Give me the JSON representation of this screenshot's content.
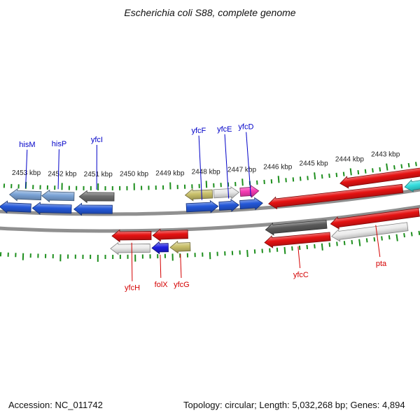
{
  "title": "Escherichia coli S88, complete genome",
  "status_bar": {
    "accession": "Accession: NC_011742",
    "summary": "Topology: circular; Length: 5,032,268 bp; Genes: 4,894"
  },
  "chart_data": {
    "type": "genome-map",
    "unit": "kbp",
    "view": {
      "left_kbp": 2453.7,
      "right_kbp": 2442.1,
      "orientation": "coordinates decrease left to right",
      "major_tick_kbp": 1,
      "minor_tick_kbp": 0.2
    },
    "colors": {
      "backbone": "#909090",
      "tick": "#1e8f1e",
      "label_blue": "#0000c8",
      "label_red": "#d40000"
    },
    "ruler_ticks": [
      {
        "value": 2453,
        "label": "2453 kbp"
      },
      {
        "value": 2452,
        "label": "2452 kbp"
      },
      {
        "value": 2451,
        "label": "2451 kbp"
      },
      {
        "value": 2450,
        "label": "2450 kbp"
      },
      {
        "value": 2449,
        "label": "2449 kbp"
      },
      {
        "value": 2448,
        "label": "2448 kbp"
      },
      {
        "value": 2447,
        "label": "2447 kbp"
      },
      {
        "value": 2446,
        "label": "2446 kbp"
      },
      {
        "value": 2445,
        "label": "2445 kbp"
      },
      {
        "value": 2444,
        "label": "2444 kbp"
      },
      {
        "value": 2443,
        "label": "2443 kbp"
      }
    ],
    "genes": [
      {
        "name": "hisM",
        "strand": "forward",
        "row": "outer",
        "start_kbp": 2453.44,
        "end_kbp": 2452.57,
        "color": "#7aa3d6",
        "head": "left",
        "label_color": "#0000c8",
        "label_k": -106
      },
      {
        "name": "hisP",
        "strand": "forward",
        "row": "outer",
        "start_kbp": 2452.55,
        "end_kbp": 2451.66,
        "color": "#7aa3d6",
        "head": "left",
        "label_color": "#0000c8",
        "label_k": -108
      },
      {
        "name": "yfcI",
        "strand": "forward",
        "row": "outer",
        "start_kbp": 2451.52,
        "end_kbp": 2450.56,
        "color": "#6e6e6e",
        "head": "left",
        "label_color": "#0000c8",
        "label_k": -115
      },
      {
        "strand": "forward",
        "row": "outer",
        "start_kbp": 2448.6,
        "end_kbp": 2447.85,
        "color": "#c9c06a",
        "head": "left"
      },
      {
        "strand": "forward",
        "row": "outer",
        "start_kbp": 2447.81,
        "end_kbp": 2447.12,
        "color": "#e8e8e8",
        "head": "right"
      },
      {
        "strand": "forward",
        "row": "outer",
        "start_kbp": 2447.08,
        "end_kbp": 2446.57,
        "color": "#f73bb4",
        "head": "right"
      },
      {
        "strand": "forward",
        "row": "outer",
        "start_kbp": 2444.33,
        "end_kbp": 2441.95,
        "color": "#e51212",
        "head": "left"
      },
      {
        "strand": "forward",
        "row": "inner",
        "start_kbp": 2453.7,
        "end_kbp": 2452.84,
        "color": "#2458d8",
        "head": "left"
      },
      {
        "strand": "forward",
        "row": "inner",
        "start_kbp": 2452.8,
        "end_kbp": 2451.73,
        "color": "#2458d8",
        "head": "left"
      },
      {
        "strand": "forward",
        "row": "inner",
        "start_kbp": 2451.66,
        "end_kbp": 2450.61,
        "color": "#2458d8",
        "head": "left"
      },
      {
        "name": "yfcF",
        "strand": "forward",
        "row": "inner",
        "start_kbp": 2448.58,
        "end_kbp": 2447.71,
        "color": "#2458d8",
        "head": "right",
        "label_color": "#0000c8",
        "label_k": -125
      },
      {
        "name": "yfcE",
        "strand": "forward",
        "row": "inner",
        "start_kbp": 2447.68,
        "end_kbp": 2447.14,
        "color": "#2458d8",
        "head": "right",
        "label_color": "#0000c8",
        "label_k": -125
      },
      {
        "name": "yfcD",
        "strand": "forward",
        "row": "inner",
        "start_kbp": 2447.11,
        "end_kbp": 2446.49,
        "color": "#2458d8",
        "head": "right",
        "label_color": "#0000c8",
        "label_k": -126
      },
      {
        "strand": "forward",
        "row": "inner",
        "start_kbp": 2446.33,
        "end_kbp": 2442.66,
        "color": "#e51212",
        "head": "left"
      },
      {
        "strand": "forward",
        "row": "inner",
        "start_kbp": 2442.6,
        "end_kbp": 2442.1,
        "color": "#35dede",
        "head": "left"
      },
      {
        "name": "yfcH",
        "strand": "reverse",
        "row": "inner",
        "start_kbp": 2450.62,
        "end_kbp": 2449.56,
        "color": "#e51212",
        "head": "left",
        "label_color": "#d40000",
        "label_k": 97
      },
      {
        "strand": "reverse",
        "row": "inner",
        "start_kbp": 2449.52,
        "end_kbp": 2448.57,
        "color": "#e51212",
        "head": "left"
      },
      {
        "strand": "reverse",
        "row": "inner",
        "start_kbp": 2446.47,
        "end_kbp": 2444.82,
        "color": "#5a5a5a",
        "head": "left"
      },
      {
        "name": "pta",
        "strand": "reverse",
        "row": "inner",
        "start_kbp": 2444.71,
        "end_kbp": 2442.32,
        "color": "#e51212",
        "head": "left",
        "label_color": "#d40000",
        "label_k": 88
      },
      {
        "strand": "reverse",
        "row": "outer",
        "start_kbp": 2450.66,
        "end_kbp": 2449.6,
        "color": "#ececec",
        "head": "left"
      },
      {
        "name": "folX",
        "strand": "reverse",
        "row": "outer",
        "start_kbp": 2449.55,
        "end_kbp": 2449.11,
        "color": "#1f1fe0",
        "head": "left",
        "label_color": "#d40000",
        "label_k": 93
      },
      {
        "name": "yfcG",
        "strand": "reverse",
        "row": "outer",
        "start_kbp": 2449.06,
        "end_kbp": 2448.52,
        "color": "#c9c06a",
        "head": "left",
        "label_color": "#d40000",
        "label_k": 94
      },
      {
        "name": "yfcC",
        "strand": "reverse",
        "row": "outer",
        "start_kbp": 2446.52,
        "end_kbp": 2444.76,
        "color": "#e51212",
        "head": "left",
        "label_color": "#d40000",
        "label_k": 91
      },
      {
        "strand": "reverse",
        "row": "outer",
        "start_kbp": 2444.72,
        "end_kbp": 2442.68,
        "color": "#ececec",
        "head": "left"
      }
    ]
  }
}
